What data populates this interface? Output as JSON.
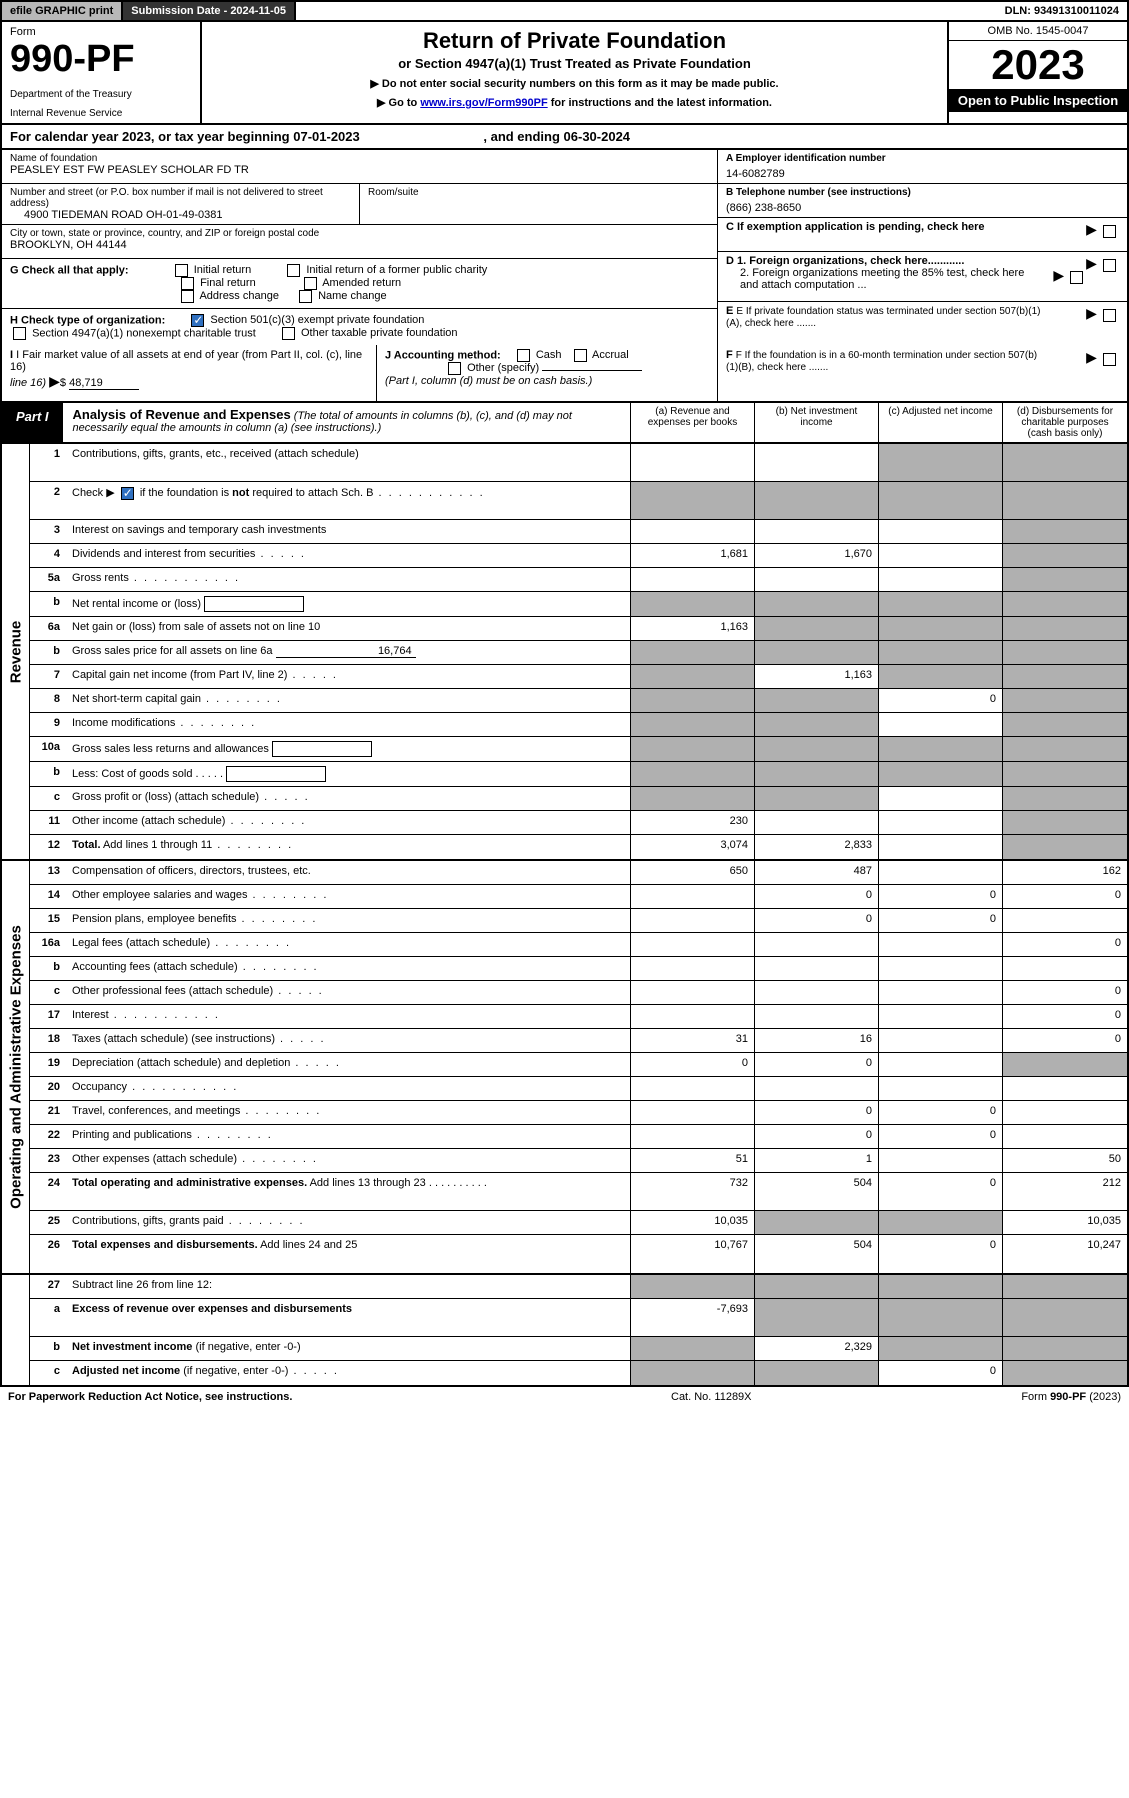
{
  "topbar": {
    "efile": "efile GRAPHIC print",
    "subdate_label": "Submission Date - 2024-11-05",
    "dln": "DLN: 93491310011024"
  },
  "header": {
    "form_label": "Form",
    "form_number": "990-PF",
    "dept1": "Department of the Treasury",
    "dept2": "Internal Revenue Service",
    "title": "Return of Private Foundation",
    "subtitle": "or Section 4947(a)(1) Trust Treated as Private Foundation",
    "note1": "▶ Do not enter social security numbers on this form as it may be made public.",
    "note2_pre": "▶ Go to ",
    "note2_link": "www.irs.gov/Form990PF",
    "note2_post": " for instructions and the latest information.",
    "omb": "OMB No. 1545-0047",
    "year": "2023",
    "open": "Open to Public Inspection"
  },
  "calyear": {
    "text_pre": "For calendar year 2023, or tax year beginning ",
    "begin": "07-01-2023",
    "mid": " , and ending ",
    "end": "06-30-2024"
  },
  "info": {
    "name_label": "Name of foundation",
    "name": "PEASLEY EST FW PEASLEY SCHOLAR FD TR",
    "addr_label": "Number and street (or P.O. box number if mail is not delivered to street address)",
    "addr": "4900 TIEDEMAN ROAD OH-01-49-0381",
    "room_label": "Room/suite",
    "city_label": "City or town, state or province, country, and ZIP or foreign postal code",
    "city": "BROOKLYN, OH  44144",
    "a_label": "A Employer identification number",
    "a_val": "14-6082789",
    "b_label": "B Telephone number (see instructions)",
    "b_val": "(866) 238-8650",
    "c_label": "C If exemption application is pending, check here",
    "d1": "D 1. Foreign organizations, check here............",
    "d2": "2. Foreign organizations meeting the 85% test, check here and attach computation ...",
    "e": "E  If private foundation status was terminated under section 507(b)(1)(A), check here .......",
    "f": "F  If the foundation is in a 60-month termination under section 507(b)(1)(B), check here .......",
    "g_label": "G Check all that apply:",
    "g_opts": [
      "Initial return",
      "Initial return of a former public charity",
      "Final return",
      "Amended return",
      "Address change",
      "Name change"
    ],
    "h_label": "H Check type of organization:",
    "h1": "Section 501(c)(3) exempt private foundation",
    "h2": "Section 4947(a)(1) nonexempt charitable trust",
    "h3": "Other taxable private foundation",
    "i_label": "I Fair market value of all assets at end of year (from Part II, col. (c), line 16)",
    "i_val": "48,719",
    "j_label": "J Accounting method:",
    "j_cash": "Cash",
    "j_accr": "Accrual",
    "j_other": "Other (specify)",
    "j_note": "(Part I, column (d) must be on cash basis.)"
  },
  "part1": {
    "label": "Part I",
    "title": "Analysis of Revenue and Expenses",
    "note": " (The total of amounts in columns (b), (c), and (d) may not necessarily equal the amounts in column (a) (see instructions).)",
    "col_a": "(a)   Revenue and expenses per books",
    "col_b": "(b)   Net investment income",
    "col_c": "(c)   Adjusted net income",
    "col_d": "(d)   Disbursements for charitable purposes (cash basis only)"
  },
  "sections": {
    "revenue": "Revenue",
    "expenses": "Operating and Administrative Expenses"
  },
  "rows": [
    {
      "n": "1",
      "d": "Contributions, gifts, grants, etc., received (attach schedule)",
      "a": "",
      "b": "",
      "c": "shaded",
      "dd": "shaded",
      "tall": true
    },
    {
      "n": "2",
      "d": "Check ▶ [CHK] if the foundation is <b>not</b> required to attach Sch. B",
      "a": "shaded",
      "b": "shaded",
      "c": "shaded",
      "dd": "shaded",
      "tall": true,
      "dotsmode": "dots",
      "checked": true
    },
    {
      "n": "3",
      "d": "Interest on savings and temporary cash investments",
      "a": "",
      "b": "",
      "c": "",
      "dd": "shaded"
    },
    {
      "n": "4",
      "d": "Dividends and interest from securities",
      "a": "1,681",
      "b": "1,670",
      "c": "",
      "dd": "shaded",
      "dotsmode": "dots-short"
    },
    {
      "n": "5a",
      "d": "Gross rents",
      "a": "",
      "b": "",
      "c": "",
      "dd": "shaded",
      "dotsmode": "dots"
    },
    {
      "n": "b",
      "d": "Net rental income or (loss) [BOX]",
      "a": "shaded",
      "b": "shaded",
      "c": "shaded",
      "dd": "shaded"
    },
    {
      "n": "6a",
      "d": "Net gain or (loss) from sale of assets not on line 10",
      "a": "1,163",
      "b": "shaded",
      "c": "shaded",
      "dd": "shaded"
    },
    {
      "n": "b",
      "d": "Gross sales price for all assets on line 6a [UL:16,764]",
      "a": "shaded",
      "b": "shaded",
      "c": "shaded",
      "dd": "shaded"
    },
    {
      "n": "7",
      "d": "Capital gain net income (from Part IV, line 2)",
      "a": "shaded",
      "b": "1,163",
      "c": "shaded",
      "dd": "shaded",
      "dotsmode": "dots-short"
    },
    {
      "n": "8",
      "d": "Net short-term capital gain",
      "a": "shaded",
      "b": "shaded",
      "c": "0",
      "dd": "shaded",
      "dotsmode": "dots-med"
    },
    {
      "n": "9",
      "d": "Income modifications",
      "a": "shaded",
      "b": "shaded",
      "c": "",
      "dd": "shaded",
      "dotsmode": "dots-med"
    },
    {
      "n": "10a",
      "d": "Gross sales less returns and allowances [BOX]",
      "a": "shaded",
      "b": "shaded",
      "c": "shaded",
      "dd": "shaded"
    },
    {
      "n": "b",
      "d": "Less: Cost of goods sold      .   .   .   .   . [BOX]",
      "a": "shaded",
      "b": "shaded",
      "c": "shaded",
      "dd": "shaded"
    },
    {
      "n": "c",
      "d": "Gross profit or (loss) (attach schedule)",
      "a": "shaded",
      "b": "shaded",
      "c": "",
      "dd": "shaded",
      "dotsmode": "dots-short"
    },
    {
      "n": "11",
      "d": "Other income (attach schedule)",
      "a": "230",
      "b": "",
      "c": "",
      "dd": "shaded",
      "dotsmode": "dots-med"
    },
    {
      "n": "12",
      "d": "<b>Total.</b> Add lines 1 through 11",
      "a": "3,074",
      "b": "2,833",
      "c": "",
      "dd": "shaded",
      "dotsmode": "dots-med"
    }
  ],
  "rows2": [
    {
      "n": "13",
      "d": "Compensation of officers, directors, trustees, etc.",
      "a": "650",
      "b": "487",
      "c": "",
      "dd": "162"
    },
    {
      "n": "14",
      "d": "Other employee salaries and wages",
      "a": "",
      "b": "0",
      "c": "0",
      "dd": "0",
      "dotsmode": "dots-med"
    },
    {
      "n": "15",
      "d": "Pension plans, employee benefits",
      "a": "",
      "b": "0",
      "c": "0",
      "dd": "",
      "dotsmode": "dots-med"
    },
    {
      "n": "16a",
      "d": "Legal fees (attach schedule)",
      "a": "",
      "b": "",
      "c": "",
      "dd": "0",
      "dotsmode": "dots-med"
    },
    {
      "n": "b",
      "d": "Accounting fees (attach schedule)",
      "a": "",
      "b": "",
      "c": "",
      "dd": "",
      "dotsmode": "dots-med"
    },
    {
      "n": "c",
      "d": "Other professional fees (attach schedule)",
      "a": "",
      "b": "",
      "c": "",
      "dd": "0",
      "dotsmode": "dots-short"
    },
    {
      "n": "17",
      "d": "Interest",
      "a": "",
      "b": "",
      "c": "",
      "dd": "0",
      "dotsmode": "dots"
    },
    {
      "n": "18",
      "d": "Taxes (attach schedule) (see instructions)",
      "a": "31",
      "b": "16",
      "c": "",
      "dd": "0",
      "dotsmode": "dots-short"
    },
    {
      "n": "19",
      "d": "Depreciation (attach schedule) and depletion",
      "a": "0",
      "b": "0",
      "c": "",
      "dd": "shaded",
      "dotsmode": "dots-short"
    },
    {
      "n": "20",
      "d": "Occupancy",
      "a": "",
      "b": "",
      "c": "",
      "dd": "",
      "dotsmode": "dots"
    },
    {
      "n": "21",
      "d": "Travel, conferences, and meetings",
      "a": "",
      "b": "0",
      "c": "0",
      "dd": "",
      "dotsmode": "dots-med"
    },
    {
      "n": "22",
      "d": "Printing and publications",
      "a": "",
      "b": "0",
      "c": "0",
      "dd": "",
      "dotsmode": "dots-med"
    },
    {
      "n": "23",
      "d": "Other expenses (attach schedule)",
      "a": "51",
      "b": "1",
      "c": "",
      "dd": "50",
      "dotsmode": "dots-med"
    },
    {
      "n": "24",
      "d": "<b>Total operating and administrative expenses.</b> Add lines 13 through 23   .   .   .   .   .   .   .   .   .   .",
      "a": "732",
      "b": "504",
      "c": "0",
      "dd": "212",
      "tall": true
    },
    {
      "n": "25",
      "d": "Contributions, gifts, grants paid",
      "a": "10,035",
      "b": "shaded",
      "c": "shaded",
      "dd": "10,035",
      "dotsmode": "dots-med"
    },
    {
      "n": "26",
      "d": "<b>Total expenses and disbursements.</b> Add lines 24 and 25",
      "a": "10,767",
      "b": "504",
      "c": "0",
      "dd": "10,247",
      "tall": true
    }
  ],
  "rows3": [
    {
      "n": "27",
      "d": "Subtract line 26 from line 12:",
      "a": "shaded",
      "b": "shaded",
      "c": "shaded",
      "dd": "shaded"
    },
    {
      "n": "a",
      "d": "<b>Excess of revenue over expenses and disbursements</b>",
      "a": "-7,693",
      "b": "shaded",
      "c": "shaded",
      "dd": "shaded",
      "tall": true
    },
    {
      "n": "b",
      "d": "<b>Net investment income</b> (if negative, enter -0-)",
      "a": "shaded",
      "b": "2,329",
      "c": "shaded",
      "dd": "shaded"
    },
    {
      "n": "c",
      "d": "<b>Adjusted net income</b> (if negative, enter -0-)",
      "a": "shaded",
      "b": "shaded",
      "c": "0",
      "dd": "shaded",
      "dotsmode": "dots-short"
    }
  ],
  "footer": {
    "left": "For Paperwork Reduction Act Notice, see instructions.",
    "mid": "Cat. No. 11289X",
    "right": "Form 990-PF (2023)"
  },
  "colors": {
    "shaded": "#b0b0b0",
    "black": "#000000",
    "link": "#0000cc",
    "checkbox": "#3070c0"
  }
}
